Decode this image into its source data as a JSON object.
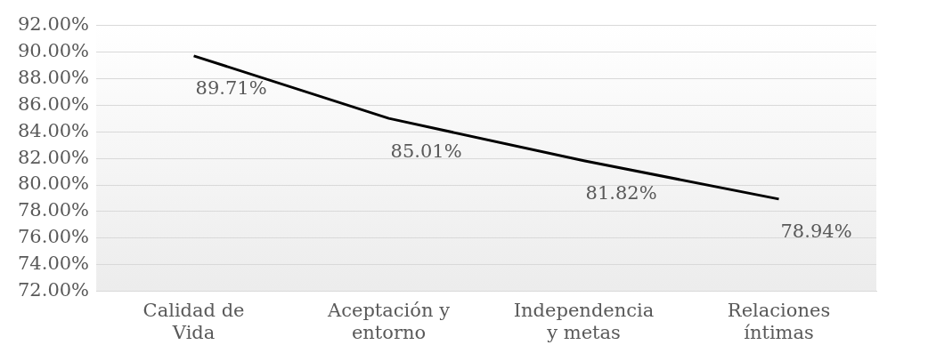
{
  "chart_data": {
    "type": "line",
    "categories": [
      "Calidad de Vida",
      "Aceptación y entorno",
      "Independencia y metas",
      "Relaciones íntimas"
    ],
    "values": [
      89.71,
      85.01,
      81.82,
      78.94
    ],
    "value_labels": [
      "89.71%",
      "85.01%",
      "81.82%",
      "78.94%"
    ],
    "color": "#000000",
    "ylim": [
      72,
      92
    ],
    "yticks": [
      {
        "value": 72,
        "label": "72.00%"
      },
      {
        "value": 74,
        "label": "74.00%"
      },
      {
        "value": 76,
        "label": "76.00%"
      },
      {
        "value": 78,
        "label": "78.00%"
      },
      {
        "value": 80,
        "label": "80.00%"
      },
      {
        "value": 82,
        "label": "82.00%"
      },
      {
        "value": 84,
        "label": "84.00%"
      },
      {
        "value": 86,
        "label": "86.00%"
      },
      {
        "value": 88,
        "label": "88.00%"
      },
      {
        "value": 90,
        "label": "90.00%"
      },
      {
        "value": 92,
        "label": "92.00%"
      }
    ],
    "grid": "y",
    "marker": "none",
    "line_style": "solid",
    "legend": false
  }
}
